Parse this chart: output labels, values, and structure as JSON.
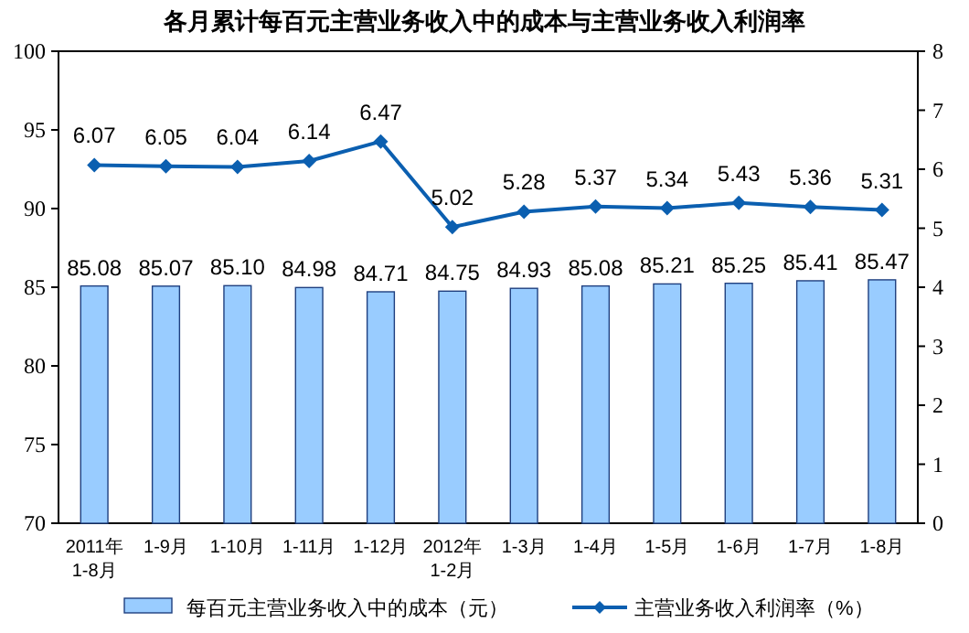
{
  "chart_data": {
    "type": "bar",
    "title": "各月累计每百元主营业务收入中的成本与主营业务收入利润率",
    "categories": [
      "2011年\n1-8月",
      "1-9月",
      "1-10月",
      "1-11月",
      "1-12月",
      "2012年\n1-2月",
      "1-3月",
      "1-4月",
      "1-5月",
      "1-6月",
      "1-7月",
      "1-8月"
    ],
    "series": [
      {
        "name": "每百元主营业务收入中的成本（元）",
        "color": "#99ccff",
        "values": [
          85.08,
          85.07,
          85.1,
          84.98,
          84.71,
          84.75,
          84.93,
          85.08,
          85.21,
          85.25,
          85.41,
          85.47
        ],
        "value_labels": [
          "85.08",
          "85.07",
          "85.10",
          "84.98",
          "84.71",
          "84.75",
          "84.93",
          "85.08",
          "85.21",
          "85.25",
          "85.41",
          "85.47"
        ]
      },
      {
        "name": "主营业务收入利润率（%）",
        "type": "line",
        "axis": "y2",
        "color": "#0b5fb0",
        "marker": "diamond",
        "values": [
          6.07,
          6.05,
          6.04,
          6.14,
          6.47,
          5.02,
          5.28,
          5.37,
          5.34,
          5.43,
          5.36,
          5.31
        ],
        "value_labels": [
          "6.07",
          "6.05",
          "6.04",
          "6.14",
          "6.47",
          "5.02",
          "5.28",
          "5.37",
          "5.34",
          "5.43",
          "5.36",
          "5.31"
        ]
      }
    ],
    "ylim": [
      70,
      100
    ],
    "yticks": [
      70,
      75,
      80,
      85,
      90,
      95,
      100
    ],
    "y2lim": [
      0,
      8
    ],
    "y2ticks": [
      0,
      1,
      2,
      3,
      4,
      5,
      6,
      7,
      8
    ],
    "grid": false,
    "legend": "bottom"
  }
}
